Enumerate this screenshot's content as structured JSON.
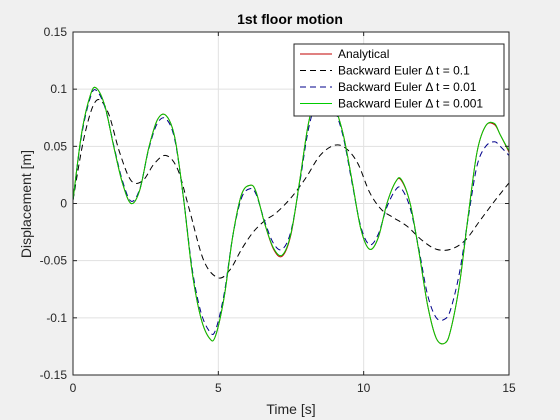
{
  "chart_data": {
    "type": "line",
    "title": "1st floor motion",
    "xlabel": "Time [s]",
    "ylabel": "Displacement [m]",
    "xlim": [
      0,
      15
    ],
    "ylim": [
      -0.15,
      0.15
    ],
    "xticks": [
      "0",
      "5",
      "10",
      "15"
    ],
    "xtick_values": [
      0,
      5,
      10,
      15
    ],
    "yticks": [
      "-0.15",
      "-0.1",
      "-0.05",
      "0",
      "0.05",
      "0.1",
      "0.15"
    ],
    "ytick_values": [
      -0.15,
      -0.1,
      -0.05,
      0,
      0.05,
      0.1,
      0.15
    ],
    "grid": true,
    "legend_position": "top-right",
    "background": "#f0f0f0",
    "axes_background": "#ffffff",
    "series": [
      {
        "name": "Analytical",
        "color": "#c00000",
        "style": "solid",
        "x": [
          0,
          0.3,
          0.6,
          0.8,
          1.1,
          1.4,
          1.7,
          2.0,
          2.3,
          2.6,
          2.9,
          3.2,
          3.5,
          3.8,
          4.1,
          4.4,
          4.7,
          4.9,
          5.2,
          5.5,
          5.8,
          6.1,
          6.3,
          6.6,
          6.9,
          7.2,
          7.5,
          7.8,
          8.1,
          8.4,
          8.7,
          9.0,
          9.3,
          9.6,
          9.9,
          10.2,
          10.5,
          10.8,
          11.1,
          11.3,
          11.6,
          11.9,
          12.2,
          12.5,
          12.8,
          13.0,
          13.3,
          13.6,
          13.9,
          14.2,
          14.5,
          14.7,
          15.0
        ],
        "y": [
          0.003,
          0.062,
          0.095,
          0.101,
          0.085,
          0.05,
          0.018,
          0.0,
          0.012,
          0.048,
          0.073,
          0.077,
          0.058,
          0.005,
          -0.06,
          -0.1,
          -0.118,
          -0.116,
          -0.082,
          -0.028,
          0.008,
          0.016,
          0.01,
          -0.018,
          -0.04,
          -0.046,
          -0.027,
          0.02,
          0.07,
          0.095,
          0.097,
          0.085,
          0.06,
          0.02,
          -0.022,
          -0.04,
          -0.03,
          0.0,
          0.019,
          0.02,
          0.0,
          -0.042,
          -0.089,
          -0.118,
          -0.122,
          -0.11,
          -0.07,
          -0.01,
          0.045,
          0.068,
          0.069,
          0.06,
          0.045
        ]
      },
      {
        "name": "Backward Euler Δ t = 0.1",
        "color": "#000000",
        "style": "dashed",
        "x": [
          0,
          0.4,
          0.8,
          1.2,
          1.6,
          2.0,
          2.4,
          2.8,
          3.2,
          3.6,
          4.0,
          4.5,
          5.0,
          5.4,
          5.8,
          6.2,
          6.6,
          7.0,
          7.5,
          8.0,
          8.5,
          9.0,
          9.4,
          9.8,
          10.2,
          10.6,
          11.0,
          11.5,
          12.0,
          12.5,
          13.0,
          13.5,
          14.0,
          14.5,
          15.0
        ],
        "y": [
          0.003,
          0.06,
          0.09,
          0.08,
          0.045,
          0.02,
          0.02,
          0.035,
          0.042,
          0.03,
          -0.005,
          -0.05,
          -0.065,
          -0.058,
          -0.04,
          -0.025,
          -0.015,
          -0.008,
          0.005,
          0.022,
          0.042,
          0.051,
          0.048,
          0.035,
          0.01,
          -0.005,
          -0.012,
          -0.02,
          -0.032,
          -0.04,
          -0.04,
          -0.032,
          -0.015,
          0.002,
          0.018
        ]
      },
      {
        "name": "Backward Euler Δ t = 0.01",
        "color": "#00008b",
        "style": "dashed",
        "x": [
          0,
          0.3,
          0.6,
          0.8,
          1.1,
          1.4,
          1.7,
          2.0,
          2.3,
          2.6,
          2.9,
          3.2,
          3.5,
          3.8,
          4.1,
          4.4,
          4.7,
          4.9,
          5.2,
          5.5,
          5.8,
          6.1,
          6.3,
          6.6,
          6.9,
          7.2,
          7.5,
          7.8,
          8.1,
          8.4,
          8.7,
          9.0,
          9.3,
          9.6,
          9.9,
          10.2,
          10.5,
          10.8,
          11.1,
          11.3,
          11.6,
          11.9,
          12.2,
          12.5,
          12.8,
          13.0,
          13.3,
          13.6,
          13.9,
          14.2,
          14.5,
          14.7,
          15.0
        ],
        "y": [
          0.003,
          0.06,
          0.093,
          0.099,
          0.084,
          0.051,
          0.02,
          0.002,
          0.013,
          0.047,
          0.07,
          0.074,
          0.056,
          0.005,
          -0.057,
          -0.095,
          -0.112,
          -0.111,
          -0.079,
          -0.028,
          0.005,
          0.013,
          0.008,
          -0.016,
          -0.035,
          -0.04,
          -0.024,
          0.018,
          0.065,
          0.09,
          0.093,
          0.082,
          0.058,
          0.018,
          -0.02,
          -0.036,
          -0.027,
          -0.003,
          0.012,
          0.013,
          -0.004,
          -0.04,
          -0.08,
          -0.1,
          -0.101,
          -0.092,
          -0.06,
          -0.012,
          0.033,
          0.05,
          0.054,
          0.05,
          0.042
        ]
      },
      {
        "name": "Backward Euler Δ t = 0.001",
        "color": "#00cc00",
        "style": "solid",
        "x": [
          0,
          0.3,
          0.6,
          0.8,
          1.1,
          1.4,
          1.7,
          2.0,
          2.3,
          2.6,
          2.9,
          3.2,
          3.5,
          3.8,
          4.1,
          4.4,
          4.7,
          4.9,
          5.2,
          5.5,
          5.8,
          6.1,
          6.3,
          6.6,
          6.9,
          7.2,
          7.5,
          7.8,
          8.1,
          8.4,
          8.7,
          9.0,
          9.3,
          9.6,
          9.9,
          10.2,
          10.5,
          10.8,
          11.1,
          11.3,
          11.6,
          11.9,
          12.2,
          12.5,
          12.8,
          13.0,
          13.3,
          13.6,
          13.9,
          14.2,
          14.5,
          14.7,
          15.0
        ],
        "y": [
          0.003,
          0.062,
          0.095,
          0.101,
          0.085,
          0.05,
          0.018,
          0.0,
          0.012,
          0.048,
          0.073,
          0.077,
          0.058,
          0.005,
          -0.06,
          -0.1,
          -0.118,
          -0.116,
          -0.082,
          -0.028,
          0.008,
          0.016,
          0.01,
          -0.018,
          -0.039,
          -0.045,
          -0.026,
          0.02,
          0.07,
          0.095,
          0.097,
          0.085,
          0.06,
          0.02,
          -0.022,
          -0.04,
          -0.03,
          0.0,
          0.019,
          0.021,
          0.0,
          -0.042,
          -0.089,
          -0.118,
          -0.122,
          -0.11,
          -0.07,
          -0.01,
          0.045,
          0.068,
          0.07,
          0.06,
          0.046
        ]
      }
    ]
  }
}
